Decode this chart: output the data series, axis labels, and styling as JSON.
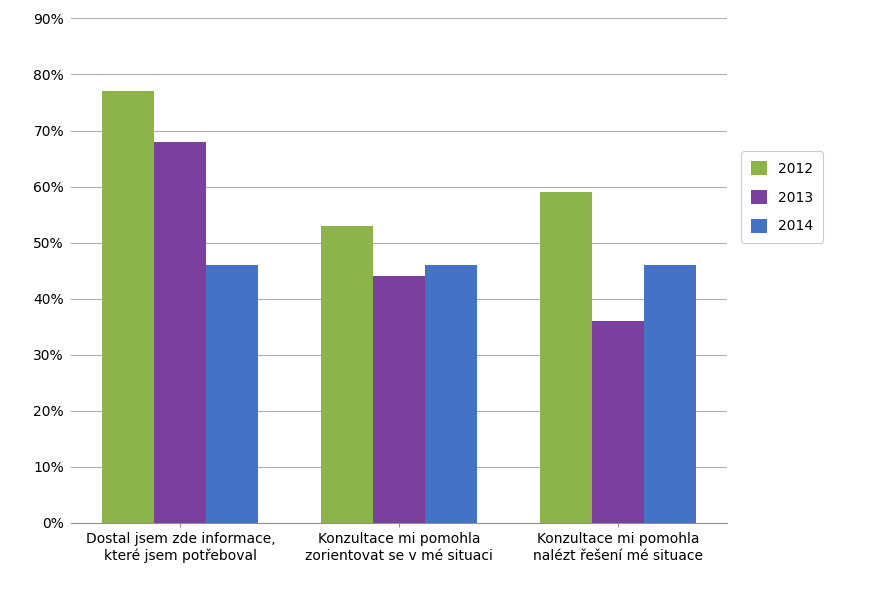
{
  "categories": [
    "Dostal jsem zde informace,\nkteré jsem potřeboval",
    "Konzultace mi pomohla\nzorientovat se v mé situaci",
    "Konzultace mi pomohla\nnalézt řešení mé situace"
  ],
  "series": {
    "2012": [
      0.77,
      0.53,
      0.59
    ],
    "2013": [
      0.68,
      0.44,
      0.36
    ],
    "2014": [
      0.46,
      0.46,
      0.46
    ]
  },
  "colors": {
    "2012": "#8db44a",
    "2013": "#7b3f9e",
    "2014": "#4472c4"
  },
  "legend_labels": [
    "2012",
    "2013",
    "2014"
  ],
  "ylim": [
    0,
    0.9
  ],
  "yticks": [
    0.0,
    0.1,
    0.2,
    0.3,
    0.4,
    0.5,
    0.6,
    0.7,
    0.8,
    0.9
  ],
  "ytick_labels": [
    "0%",
    "10%",
    "20%",
    "30%",
    "40%",
    "50%",
    "60%",
    "70%",
    "80%",
    "90%"
  ],
  "background_color": "#ffffff",
  "grid_color": "#b0b0b0",
  "bar_width": 0.25,
  "font_size": 10,
  "legend_fontsize": 10,
  "tick_fontsize": 10
}
